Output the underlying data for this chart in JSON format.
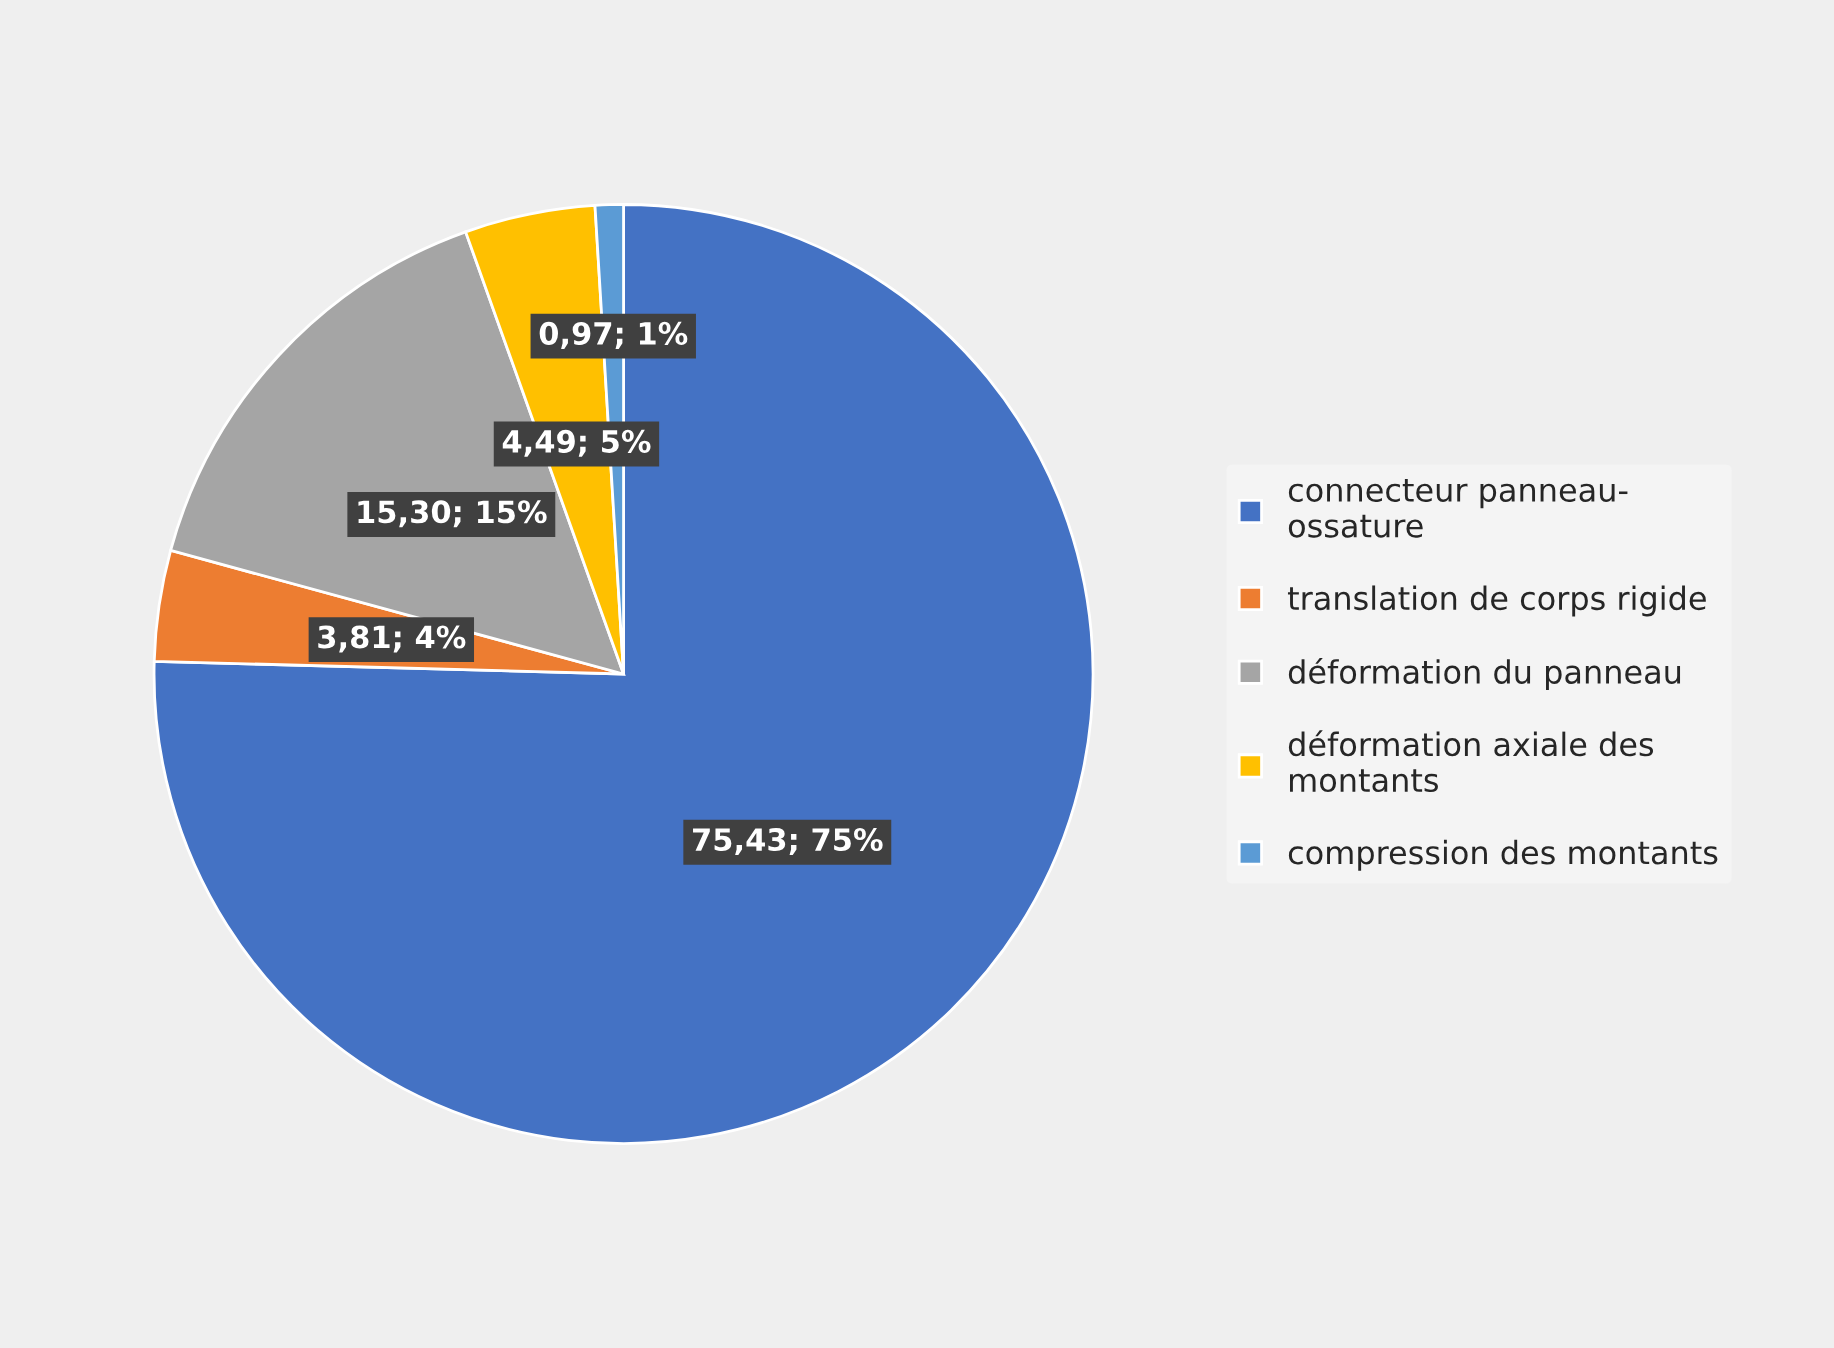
{
  "chart_data": {
    "type": "pie",
    "categories": [
      "connecteur panneau-\nossature",
      "translation de corps rigide",
      "déformation du panneau",
      "déformation axiale des\nmontants",
      "compression des montants"
    ],
    "values": [
      75.43,
      3.81,
      15.3,
      4.49,
      0.97
    ],
    "value_labels": [
      "75,43; 75%",
      "3,81; 4%",
      "15,30; 15%",
      "4,49; 5%",
      "0,97; 1%"
    ],
    "colors": [
      "#4472c4",
      "#ed7d31",
      "#a5a5a5",
      "#ffc000",
      "#5b9bd5"
    ],
    "legend": "right"
  }
}
